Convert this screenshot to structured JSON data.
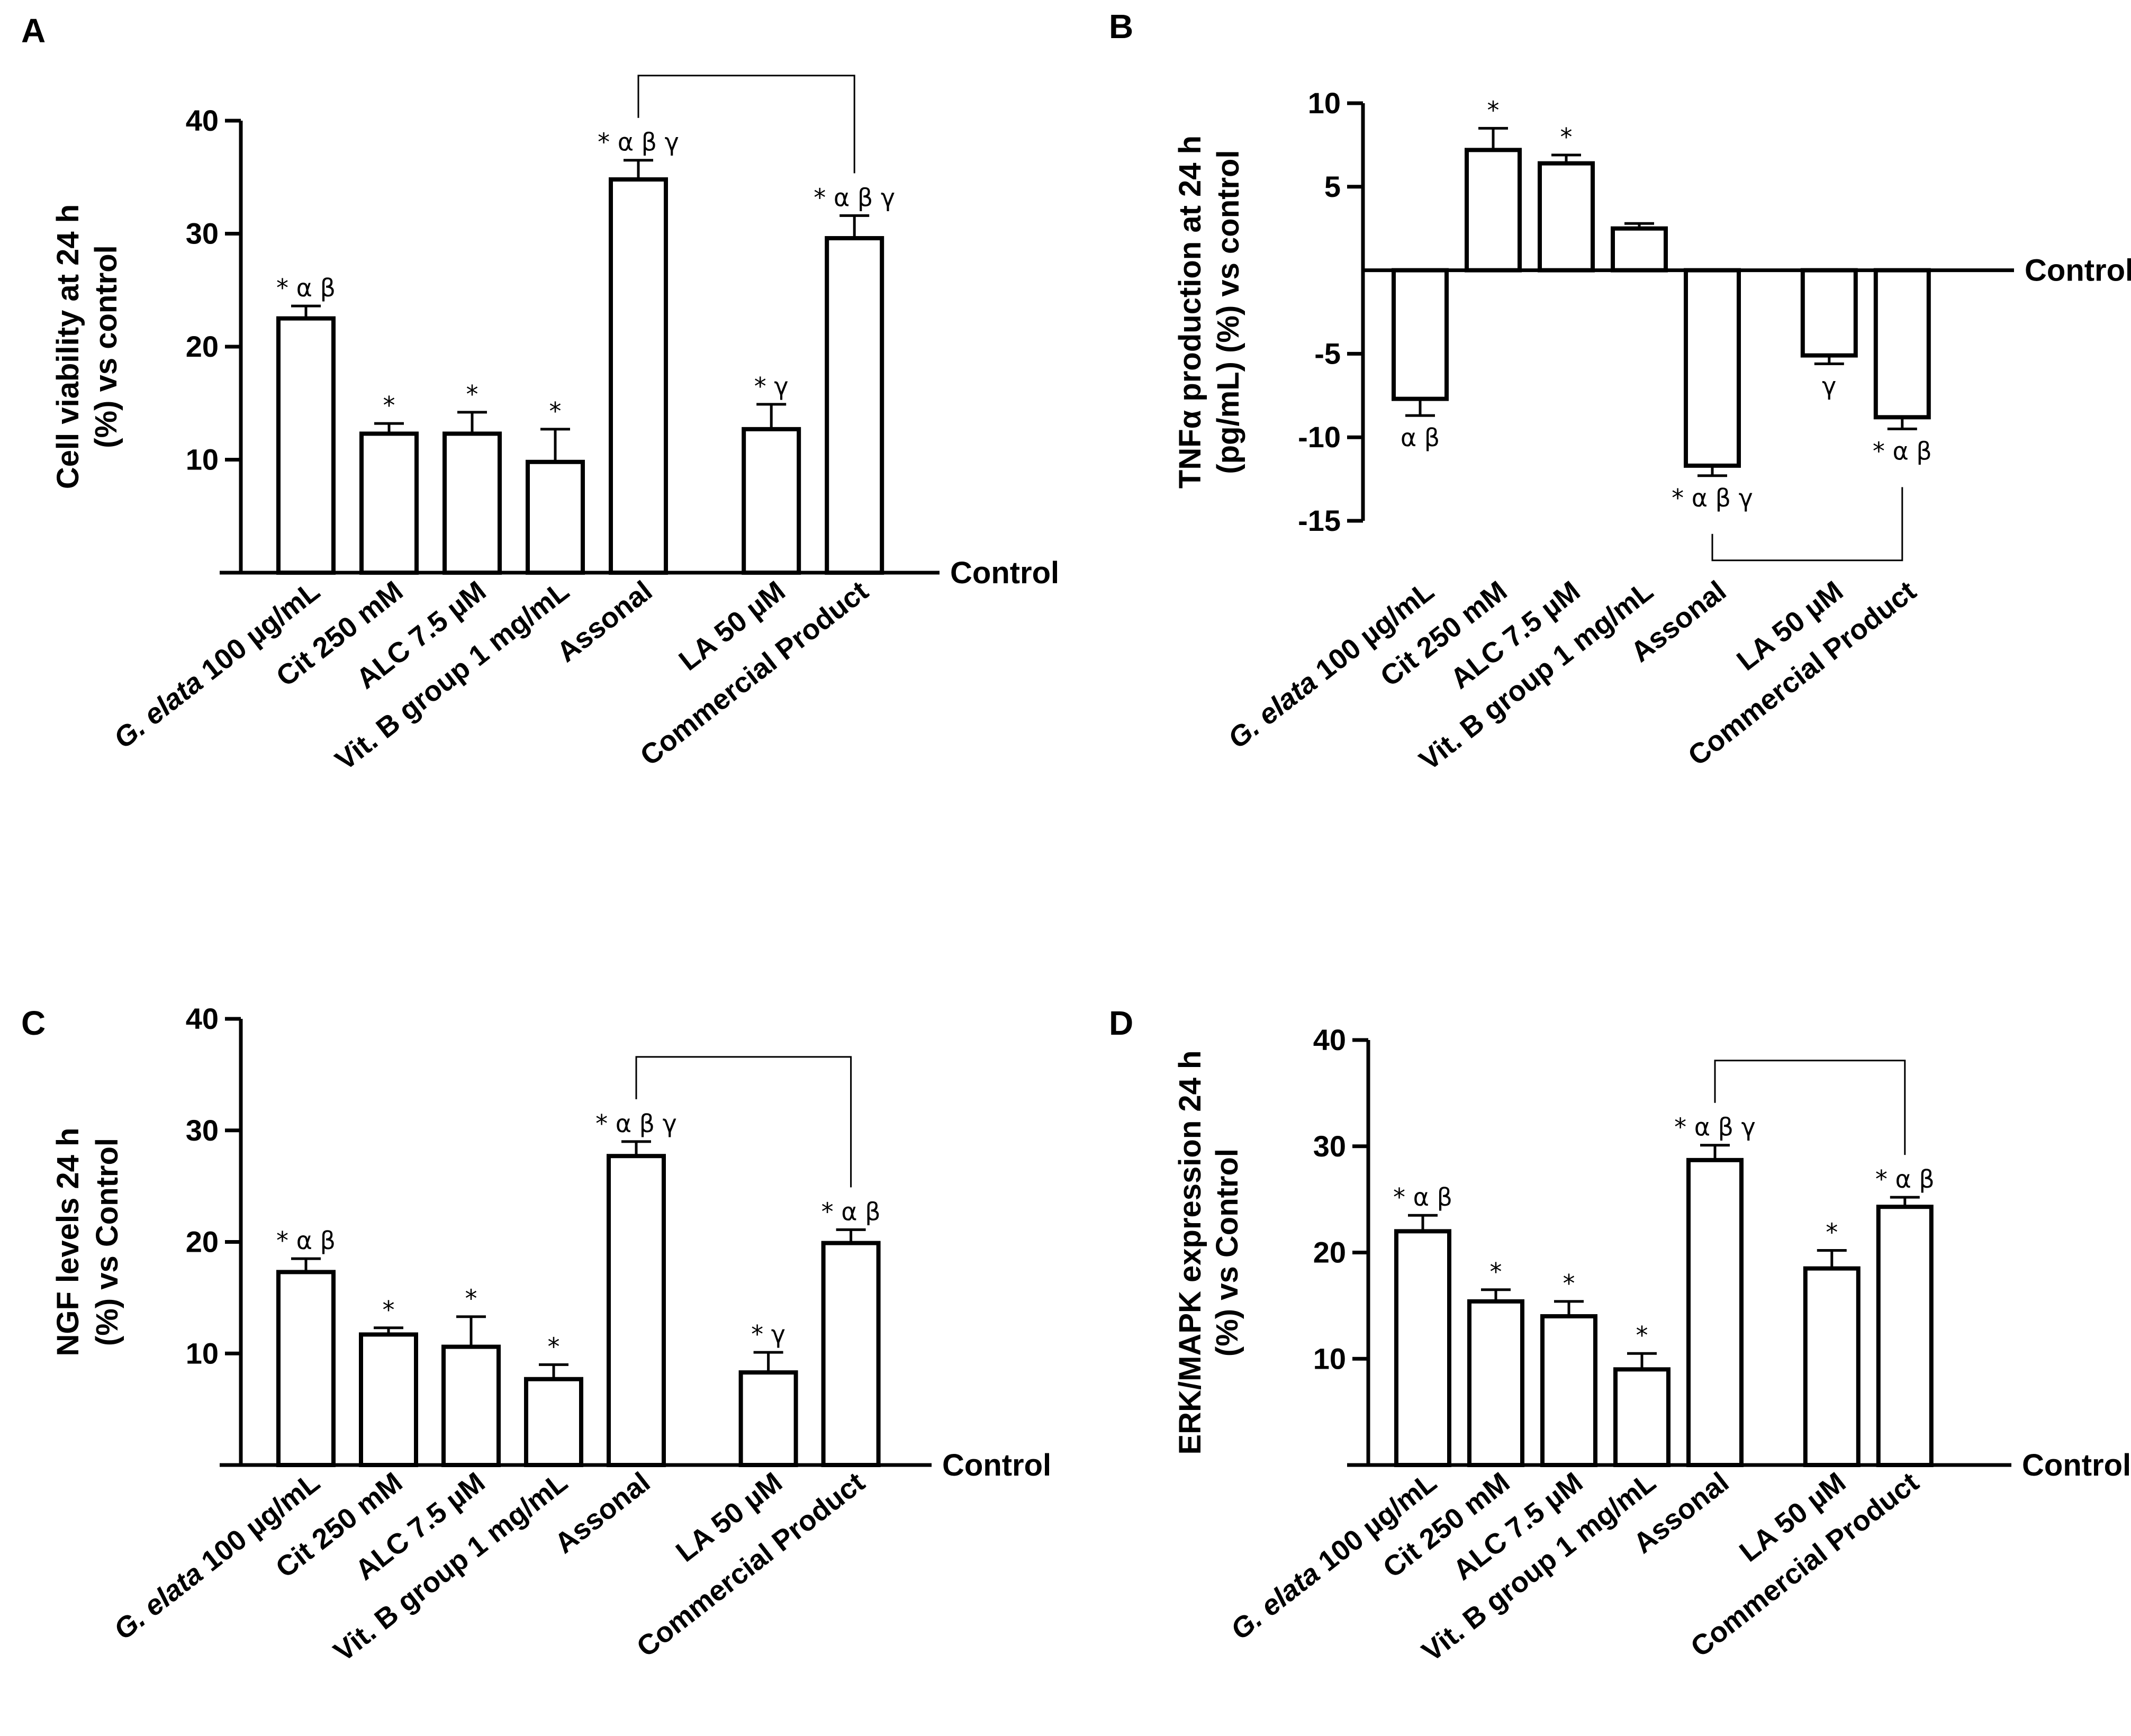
{
  "chart_data": [
    {
      "panel": "A",
      "type": "bar",
      "ylabel": "Cell viability at 24 h\n(%) vs control",
      "baseline_label": "Control",
      "ylim": [
        0,
        40
      ],
      "yticks": [
        10,
        20,
        30,
        40
      ],
      "categories": [
        "G. elata 100 µg/mL",
        "Cit 250 mM",
        "ALC 7.5 µM",
        "Vit. B group 1 mg/mL",
        "Assonal",
        "LA 50 µM",
        "Commercial Product"
      ],
      "category_slots": [
        0,
        1,
        2,
        3,
        4,
        5.6,
        6.6
      ],
      "values": [
        22.5,
        12.3,
        12.3,
        9.8,
        34.8,
        12.7,
        29.6
      ],
      "errors": [
        1.1,
        0.9,
        1.9,
        2.9,
        1.7,
        2.2,
        2.0
      ],
      "annotations": [
        "* α β",
        "*",
        "*",
        "*",
        "* α β γ",
        "* γ",
        "* α β γ"
      ],
      "bracket": [
        4,
        6
      ]
    },
    {
      "panel": "B",
      "type": "bar",
      "ylabel": "TNFα production at 24 h\n(pg/mL) (%) vs control",
      "baseline_label": "Control",
      "ylim": [
        -15,
        10
      ],
      "yticks": [
        -15,
        -10,
        -5,
        5,
        10
      ],
      "categories": [
        "G. elata 100 µg/mL",
        "Cit 250 mM",
        "ALC 7.5 µM",
        "Vit. B group 1 mg/mL",
        "Assonal",
        "LA 50 µM",
        "Commercial Product"
      ],
      "category_slots": [
        0,
        1,
        2,
        3,
        4,
        5.6,
        6.6
      ],
      "values": [
        -7.7,
        7.2,
        6.4,
        2.5,
        -11.7,
        -5.1,
        -8.8
      ],
      "errors": [
        1.0,
        1.3,
        0.5,
        0.3,
        0.6,
        0.5,
        0.7
      ],
      "annotations": [
        "α β",
        "*",
        "*",
        "",
        "* α β γ",
        "γ",
        "* α β"
      ],
      "bracket": [
        4,
        6
      ]
    },
    {
      "panel": "C",
      "type": "bar",
      "ylabel": "NGF levels 24 h\n(%) vs Control",
      "baseline_label": "Control",
      "ylim": [
        0,
        40
      ],
      "yticks": [
        10,
        20,
        30,
        40
      ],
      "categories": [
        "G. elata 100 µg/mL",
        "Cit 250 mM",
        "ALC 7.5 µM",
        "Vit. B group 1 mg/mL",
        "Assonal",
        "LA 50 µM",
        "Commercial Product"
      ],
      "category_slots": [
        0,
        1,
        2,
        3,
        4,
        5.6,
        6.6
      ],
      "values": [
        17.3,
        11.7,
        10.6,
        7.7,
        27.7,
        8.3,
        19.9
      ],
      "errors": [
        1.2,
        0.6,
        2.7,
        1.3,
        1.3,
        1.8,
        1.2
      ],
      "annotations": [
        "* α β",
        "*",
        "*",
        "*",
        "* α β γ",
        "* γ",
        "* α β"
      ],
      "bracket": [
        4,
        6
      ]
    },
    {
      "panel": "D",
      "type": "bar",
      "ylabel": "ERK/MAPK expression 24 h\n(%) vs Control",
      "baseline_label": "Control",
      "ylim": [
        0,
        40
      ],
      "yticks": [
        10,
        20,
        30,
        40
      ],
      "categories": [
        "G. elata 100 µg/mL",
        "Cit 250 mM",
        "ALC 7.5 µM",
        "Vit. B group 1 mg/mL",
        "Assonal",
        "LA 50 µM",
        "Commercial Product"
      ],
      "category_slots": [
        0,
        1,
        2,
        3,
        4,
        5.6,
        6.6
      ],
      "values": [
        22.0,
        15.4,
        14.0,
        9.0,
        28.7,
        18.5,
        24.3
      ],
      "errors": [
        1.5,
        1.1,
        1.4,
        1.5,
        1.4,
        1.7,
        0.9
      ],
      "annotations": [
        "* α β",
        "*",
        "*",
        "*",
        "* α β γ",
        "*",
        "* α β"
      ],
      "bracket": [
        4,
        6
      ]
    }
  ]
}
